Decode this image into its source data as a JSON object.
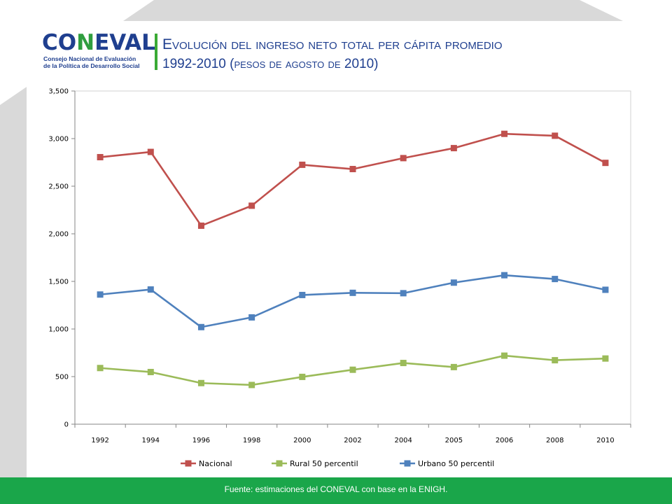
{
  "logo": {
    "word_part1": "CO",
    "word_part2": "N",
    "word_part3": "EVAL",
    "subtitle_line1": "Consejo Nacional de Evaluación",
    "subtitle_line2": "de la Política de Desarrollo Social"
  },
  "title": "Evolución del ingreso neto total per cápita promedio",
  "subtitle": "1992-2010 (pesos de agosto de 2010)",
  "footer": "Fuente: estimaciones del CONEVAL con base en  la ENIGH.",
  "colors": {
    "nacional": "#c0504d",
    "rural": "#9bbb59",
    "urbano": "#4f81bd",
    "accent": "#1aa64a"
  },
  "chart_data": {
    "type": "line",
    "categories": [
      "1992",
      "1994",
      "1996",
      "1998",
      "2000",
      "2002",
      "2004",
      "2005",
      "2006",
      "2008",
      "2010"
    ],
    "series": [
      {
        "name": "Nacional",
        "values": [
          2805,
          2860,
          2085,
          2295,
          2725,
          2680,
          2795,
          2900,
          3050,
          3030,
          2745
        ]
      },
      {
        "name": "Rural 50 percentil",
        "values": [
          590,
          548,
          432,
          412,
          497,
          572,
          643,
          600,
          720,
          672,
          690
        ]
      },
      {
        "name": "Urbano 50 percentil",
        "values": [
          1362,
          1415,
          1020,
          1122,
          1357,
          1380,
          1376,
          1487,
          1565,
          1525,
          1412
        ]
      }
    ],
    "yticks": [
      "0",
      "500",
      "1,000",
      "1,500",
      "2,000",
      "2,500",
      "3,000",
      "3,500"
    ],
    "ylim": [
      0,
      3500
    ],
    "legend": "bottom",
    "grid": false
  }
}
